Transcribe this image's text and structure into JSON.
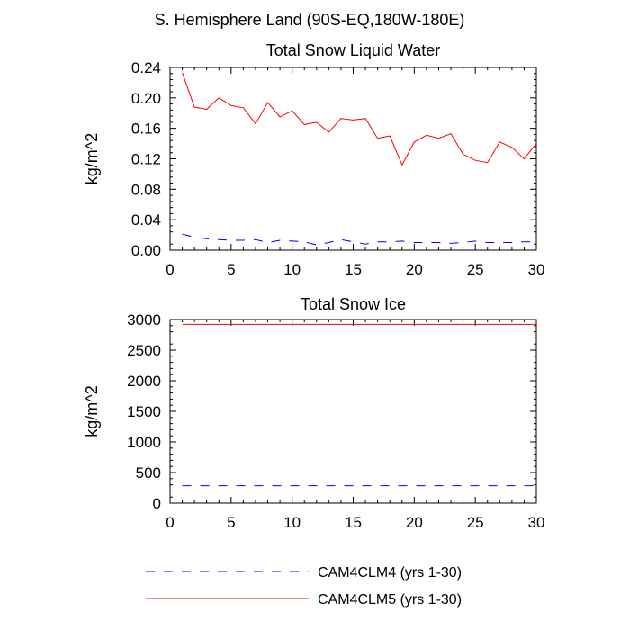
{
  "page_title": "S. Hemisphere Land (90S-EQ,180W-180E)",
  "colors": {
    "cam4clm4": "#0000ff",
    "cam4clm5": "#ff0000",
    "axis": "#000000"
  },
  "legend": {
    "entries": [
      {
        "label": "CAM4CLM4 (yrs 1-30)",
        "color": "#0000ff",
        "style": "dashed"
      },
      {
        "label": "CAM4CLM5 (yrs 1-30)",
        "color": "#ff0000",
        "style": "solid"
      }
    ]
  },
  "chart_data": [
    {
      "type": "line",
      "title": "Total Snow Liquid Water",
      "xlabel": "",
      "ylabel": "kg/m^2",
      "xlim": [
        0,
        30
      ],
      "ylim": [
        0,
        0.24
      ],
      "xticks": [
        0,
        5,
        10,
        15,
        20,
        25,
        30
      ],
      "xtick_labels": [
        "0",
        "5",
        "10",
        "15",
        "20",
        "25",
        "30"
      ],
      "yticks": [
        0,
        0.04,
        0.08,
        0.12,
        0.16,
        0.2,
        0.24
      ],
      "ytick_labels": [
        "0.00",
        "0.04",
        "0.08",
        "0.12",
        "0.16",
        "0.20",
        "0.24"
      ],
      "x": [
        1,
        2,
        3,
        4,
        5,
        6,
        7,
        8,
        9,
        10,
        11,
        12,
        13,
        14,
        15,
        16,
        17,
        18,
        19,
        20,
        21,
        22,
        23,
        24,
        25,
        26,
        27,
        28,
        29,
        30
      ],
      "series": [
        {
          "name": "CAM4CLM4 (yrs 1-30)",
          "color": "#0000ff",
          "style": "dashed",
          "values": [
            0.021,
            0.017,
            0.015,
            0.014,
            0.013,
            0.013,
            0.014,
            0.01,
            0.013,
            0.012,
            0.011,
            0.007,
            0.01,
            0.014,
            0.011,
            0.008,
            0.011,
            0.011,
            0.012,
            0.01,
            0.01,
            0.01,
            0.009,
            0.01,
            0.012,
            0.01,
            0.01,
            0.01,
            0.011,
            0.011
          ]
        },
        {
          "name": "CAM4CLM5 (yrs 1-30)",
          "color": "#ff0000",
          "style": "solid",
          "values": [
            0.233,
            0.188,
            0.185,
            0.2,
            0.19,
            0.187,
            0.166,
            0.194,
            0.175,
            0.183,
            0.165,
            0.168,
            0.155,
            0.173,
            0.171,
            0.173,
            0.147,
            0.15,
            0.112,
            0.142,
            0.151,
            0.147,
            0.153,
            0.126,
            0.118,
            0.115,
            0.142,
            0.135,
            0.12,
            0.14
          ]
        }
      ]
    },
    {
      "type": "line",
      "title": "Total Snow Ice",
      "xlabel": "",
      "ylabel": "kg/m^2",
      "xlim": [
        0,
        30
      ],
      "ylim": [
        0,
        3000
      ],
      "xticks": [
        0,
        5,
        10,
        15,
        20,
        25,
        30
      ],
      "xtick_labels": [
        "0",
        "5",
        "10",
        "15",
        "20",
        "25",
        "30"
      ],
      "yticks": [
        0,
        500,
        1000,
        1500,
        2000,
        2500,
        3000
      ],
      "ytick_labels": [
        "0",
        "500",
        "1000",
        "1500",
        "2000",
        "2500",
        "3000"
      ],
      "x": [
        1,
        2,
        3,
        4,
        5,
        6,
        7,
        8,
        9,
        10,
        11,
        12,
        13,
        14,
        15,
        16,
        17,
        18,
        19,
        20,
        21,
        22,
        23,
        24,
        25,
        26,
        27,
        28,
        29,
        30
      ],
      "series": [
        {
          "name": "CAM4CLM4 (yrs 1-30)",
          "color": "#0000ff",
          "style": "dashed",
          "values": [
            285,
            285,
            285,
            285,
            285,
            285,
            285,
            285,
            285,
            285,
            285,
            285,
            285,
            285,
            285,
            285,
            285,
            285,
            285,
            285,
            285,
            285,
            285,
            285,
            285,
            285,
            285,
            285,
            285,
            285
          ]
        },
        {
          "name": "CAM4CLM5 (yrs 1-30)",
          "color": "#ff0000",
          "style": "solid",
          "values": [
            2920,
            2920,
            2920,
            2920,
            2920,
            2920,
            2920,
            2920,
            2920,
            2920,
            2920,
            2920,
            2920,
            2920,
            2920,
            2920,
            2920,
            2920,
            2920,
            2920,
            2920,
            2920,
            2920,
            2920,
            2920,
            2920,
            2920,
            2920,
            2920,
            2920
          ]
        }
      ]
    }
  ]
}
